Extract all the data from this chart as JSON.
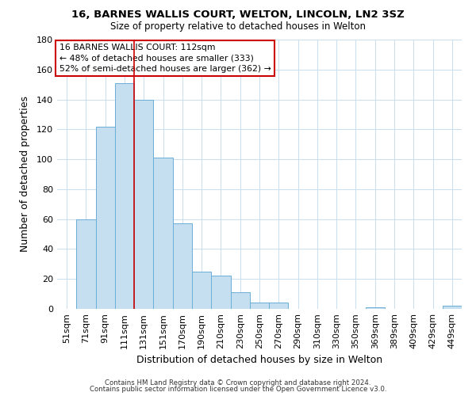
{
  "title": "16, BARNES WALLIS COURT, WELTON, LINCOLN, LN2 3SZ",
  "subtitle": "Size of property relative to detached houses in Welton",
  "xlabel": "Distribution of detached houses by size in Welton",
  "ylabel": "Number of detached properties",
  "bar_color": "#c5dff0",
  "bar_edge_color": "#6aaed6",
  "categories": [
    "51sqm",
    "71sqm",
    "91sqm",
    "111sqm",
    "131sqm",
    "151sqm",
    "170sqm",
    "190sqm",
    "210sqm",
    "230sqm",
    "250sqm",
    "270sqm",
    "290sqm",
    "310sqm",
    "330sqm",
    "350sqm",
    "369sqm",
    "389sqm",
    "409sqm",
    "429sqm",
    "449sqm"
  ],
  "values": [
    0,
    60,
    122,
    151,
    140,
    101,
    57,
    25,
    22,
    11,
    4,
    4,
    0,
    0,
    0,
    0,
    1,
    0,
    0,
    0,
    2
  ],
  "ylim": [
    0,
    180
  ],
  "yticks": [
    0,
    20,
    40,
    60,
    80,
    100,
    120,
    140,
    160,
    180
  ],
  "redline_index": 3,
  "annotation_line1": "16 BARNES WALLIS COURT: 112sqm",
  "annotation_line2": "← 48% of detached houses are smaller (333)",
  "annotation_line3": "52% of semi-detached houses are larger (362) →",
  "footer_line1": "Contains HM Land Registry data © Crown copyright and database right 2024.",
  "footer_line2": "Contains public sector information licensed under the Open Government Licence v3.0.",
  "background_color": "#ffffff",
  "grid_color": "#c8dff0"
}
